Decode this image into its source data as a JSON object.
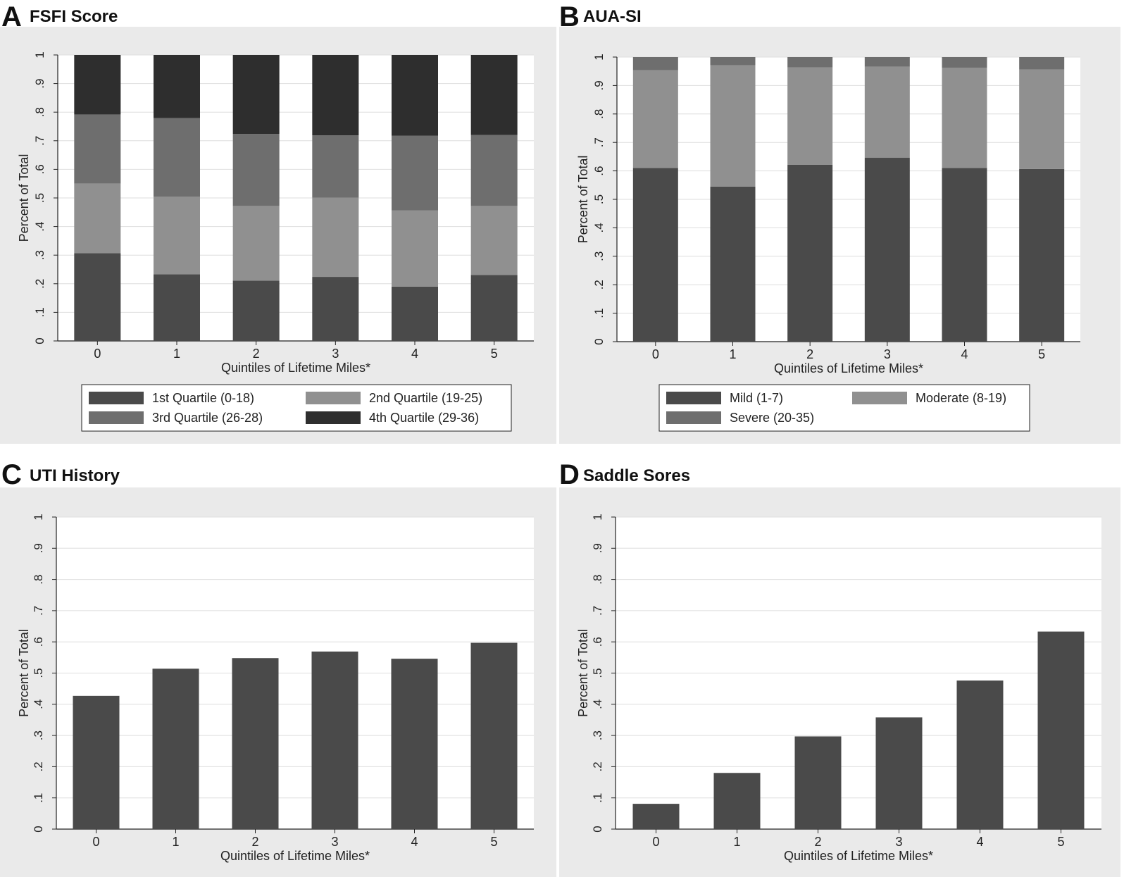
{
  "chart_data": [
    {
      "panel_letter": "A",
      "type": "bar",
      "stacked": true,
      "title": "FSFI Score",
      "xlabel": "Quintiles of Lifetime Miles*",
      "ylabel": "Percent of Total",
      "categories": [
        "0",
        "1",
        "2",
        "3",
        "4",
        "5"
      ],
      "yticks": [
        "0",
        ".1",
        ".2",
        ".3",
        ".4",
        ".5",
        ".6",
        ".7",
        ".8",
        ".9",
        "1"
      ],
      "ylim": [
        0,
        1
      ],
      "grid": true,
      "legend_position": "bottom",
      "series": [
        {
          "name": "1st Quartile (0-18)",
          "color": "#4a4a4a",
          "values": [
            0.307,
            0.233,
            0.211,
            0.224,
            0.19,
            0.231
          ]
        },
        {
          "name": "2nd Quartile (19-25)",
          "color": "#909090",
          "values": [
            0.243,
            0.271,
            0.261,
            0.277,
            0.266,
            0.241
          ]
        },
        {
          "name": "3rd Quartile (26-28)",
          "color": "#6e6e6e",
          "values": [
            0.242,
            0.275,
            0.252,
            0.218,
            0.262,
            0.248
          ]
        },
        {
          "name": "4th Quartile (29-36)",
          "color": "#2e2e2e",
          "values": [
            0.208,
            0.221,
            0.276,
            0.281,
            0.282,
            0.28
          ]
        }
      ]
    },
    {
      "panel_letter": "B",
      "type": "bar",
      "stacked": true,
      "title": "AUA-SI",
      "xlabel": "Quintiles of Lifetime Miles*",
      "ylabel": "Percent of Total",
      "categories": [
        "0",
        "1",
        "2",
        "3",
        "4",
        "5"
      ],
      "yticks": [
        "0",
        ".1",
        ".2",
        ".3",
        ".4",
        ".5",
        ".6",
        ".7",
        ".8",
        ".9",
        "1"
      ],
      "ylim": [
        0,
        1
      ],
      "grid": true,
      "legend_position": "bottom",
      "series": [
        {
          "name": "Mild (1-7)",
          "color": "#4a4a4a",
          "values": [
            0.61,
            0.545,
            0.622,
            0.646,
            0.61,
            0.607
          ]
        },
        {
          "name": "Moderate (8-19)",
          "color": "#909090",
          "values": [
            0.344,
            0.426,
            0.342,
            0.32,
            0.352,
            0.349
          ]
        },
        {
          "name": "Severe (20-35)",
          "color": "#6e6e6e",
          "values": [
            0.046,
            0.029,
            0.036,
            0.034,
            0.038,
            0.044
          ]
        }
      ]
    },
    {
      "panel_letter": "C",
      "type": "bar",
      "stacked": false,
      "title": "UTI History",
      "xlabel": "Quintiles of Lifetime Miles*",
      "ylabel": "Percent of Total",
      "categories": [
        "0",
        "1",
        "2",
        "3",
        "4",
        "5"
      ],
      "yticks": [
        "0",
        ".1",
        ".2",
        ".3",
        ".4",
        ".5",
        ".6",
        ".7",
        ".8",
        ".9",
        "1"
      ],
      "ylim": [
        0,
        1
      ],
      "grid": true,
      "series": [
        {
          "color": "#4a4a4a",
          "values": [
            0.427,
            0.514,
            0.548,
            0.569,
            0.546,
            0.597
          ]
        }
      ]
    },
    {
      "panel_letter": "D",
      "type": "bar",
      "stacked": false,
      "title": "Saddle Sores",
      "xlabel": "Quintiles of Lifetime Miles*",
      "ylabel": "Percent of Total",
      "categories": [
        "0",
        "1",
        "2",
        "3",
        "4",
        "5"
      ],
      "yticks": [
        "0",
        ".1",
        ".2",
        ".3",
        ".4",
        ".5",
        ".6",
        ".7",
        ".8",
        ".9",
        "1"
      ],
      "ylim": [
        0,
        1
      ],
      "grid": true,
      "series": [
        {
          "color": "#4a4a4a",
          "values": [
            0.081,
            0.18,
            0.297,
            0.358,
            0.476,
            0.633
          ]
        }
      ]
    }
  ]
}
